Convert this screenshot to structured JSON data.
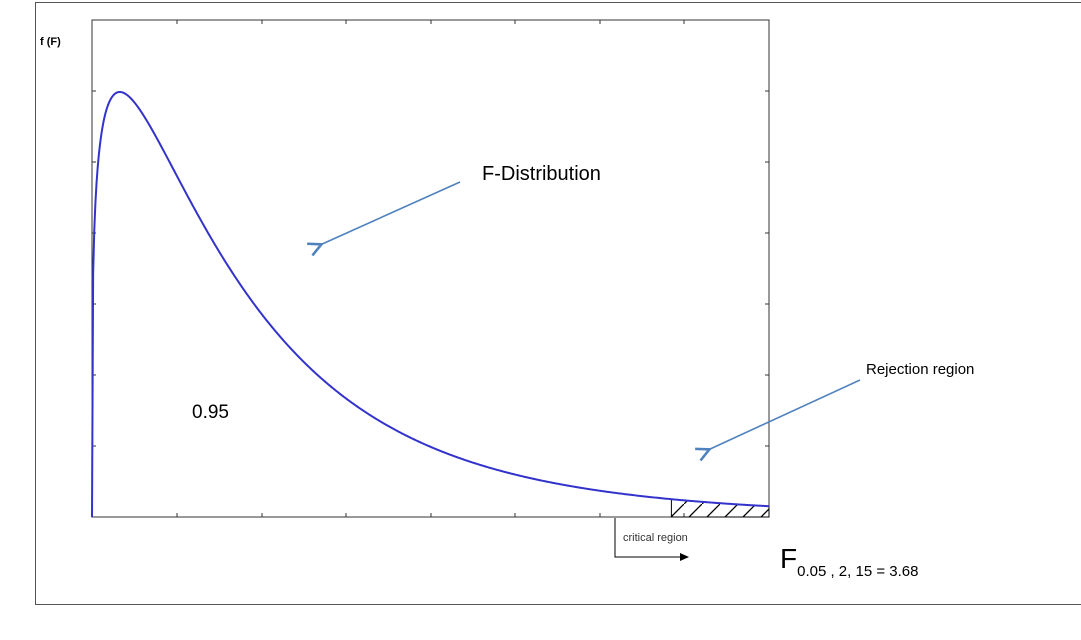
{
  "chart_data": {
    "type": "area",
    "title": "",
    "ylabel": "f (F)",
    "xlabel": "",
    "grid": false,
    "curve": {
      "name": "F-Distribution",
      "df1": 2,
      "df2": 15
    },
    "acceptance_label": "0.95",
    "critical_label": "critical region",
    "rejection_label": "Rejection region",
    "critical_value": {
      "prefix": "F",
      "subscript": "0.05 , 2, 15 = 3.68",
      "value": 3.68
    },
    "colors": {
      "curve": "#3333cc",
      "arrow": "#4f81bd",
      "hatch": "#000000"
    }
  }
}
